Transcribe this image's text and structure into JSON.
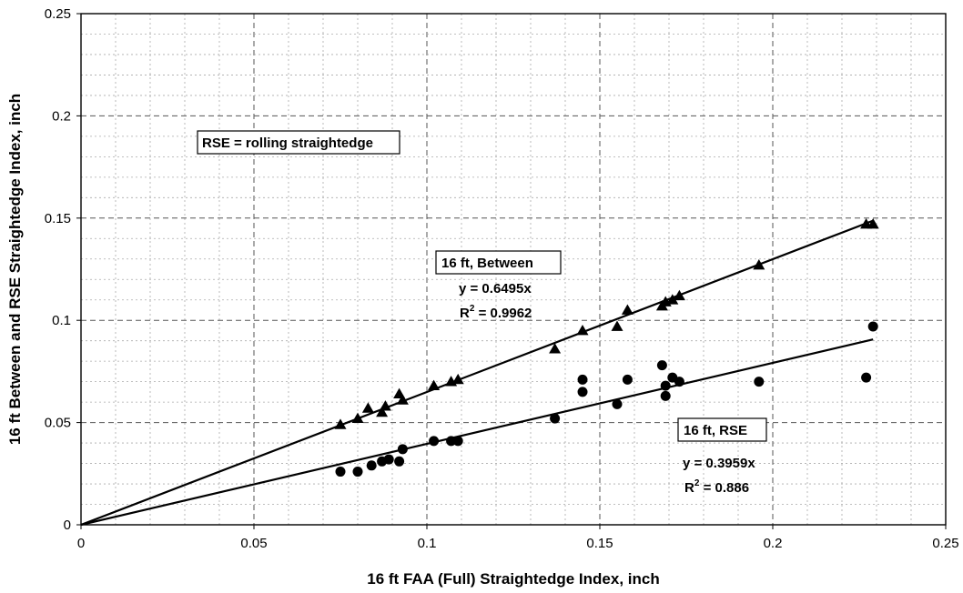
{
  "chart_data": {
    "type": "scatter",
    "xlabel": "16 ft FAA (Full) Straightedge Index, inch",
    "ylabel": "16 ft Between and RSE Straightedge Index, inch",
    "xlim": [
      0,
      0.25
    ],
    "ylim": [
      0,
      0.25
    ],
    "x_ticks": [
      "0",
      "0.05",
      "0.1",
      "0.15",
      "0.2",
      "0.25"
    ],
    "y_ticks": [
      "0",
      "0.05",
      "0.1",
      "0.15",
      "0.2",
      "0.25"
    ],
    "grid": "major dashed, minor dotted",
    "series": [
      {
        "name": "16 ft, Between",
        "marker": "triangle",
        "color": "#000000",
        "points": [
          [
            0.075,
            0.049
          ],
          [
            0.08,
            0.052
          ],
          [
            0.083,
            0.057
          ],
          [
            0.087,
            0.055
          ],
          [
            0.088,
            0.058
          ],
          [
            0.092,
            0.064
          ],
          [
            0.093,
            0.061
          ],
          [
            0.102,
            0.068
          ],
          [
            0.107,
            0.07
          ],
          [
            0.109,
            0.071
          ],
          [
            0.137,
            0.086
          ],
          [
            0.145,
            0.095
          ],
          [
            0.155,
            0.097
          ],
          [
            0.158,
            0.105
          ],
          [
            0.168,
            0.107
          ],
          [
            0.169,
            0.109
          ],
          [
            0.171,
            0.11
          ],
          [
            0.173,
            0.112
          ],
          [
            0.196,
            0.127
          ],
          [
            0.227,
            0.147
          ],
          [
            0.229,
            0.147
          ]
        ],
        "trendline": {
          "slope": 0.6495,
          "x_end": 0.229
        },
        "equation": "y = 0.6495x",
        "r2_label": "R",
        "r2_sup": "2",
        "r2_value": " = 0.9962"
      },
      {
        "name": "16 ft, RSE",
        "marker": "circle",
        "color": "#000000",
        "points": [
          [
            0.075,
            0.026
          ],
          [
            0.08,
            0.026
          ],
          [
            0.084,
            0.029
          ],
          [
            0.087,
            0.031
          ],
          [
            0.089,
            0.032
          ],
          [
            0.092,
            0.031
          ],
          [
            0.093,
            0.037
          ],
          [
            0.102,
            0.041
          ],
          [
            0.107,
            0.041
          ],
          [
            0.109,
            0.041
          ],
          [
            0.137,
            0.052
          ],
          [
            0.145,
            0.065
          ],
          [
            0.145,
            0.071
          ],
          [
            0.155,
            0.059
          ],
          [
            0.158,
            0.071
          ],
          [
            0.168,
            0.078
          ],
          [
            0.169,
            0.063
          ],
          [
            0.169,
            0.068
          ],
          [
            0.171,
            0.072
          ],
          [
            0.173,
            0.07
          ],
          [
            0.196,
            0.07
          ],
          [
            0.227,
            0.072
          ],
          [
            0.229,
            0.097
          ]
        ],
        "trendline": {
          "slope": 0.3959,
          "x_end": 0.229
        },
        "equation": "y = 0.3959x",
        "r2_label": "R",
        "r2_sup": "2",
        "r2_value": " = 0.886"
      }
    ],
    "annotations": {
      "note": "RSE = rolling straightedge"
    }
  }
}
